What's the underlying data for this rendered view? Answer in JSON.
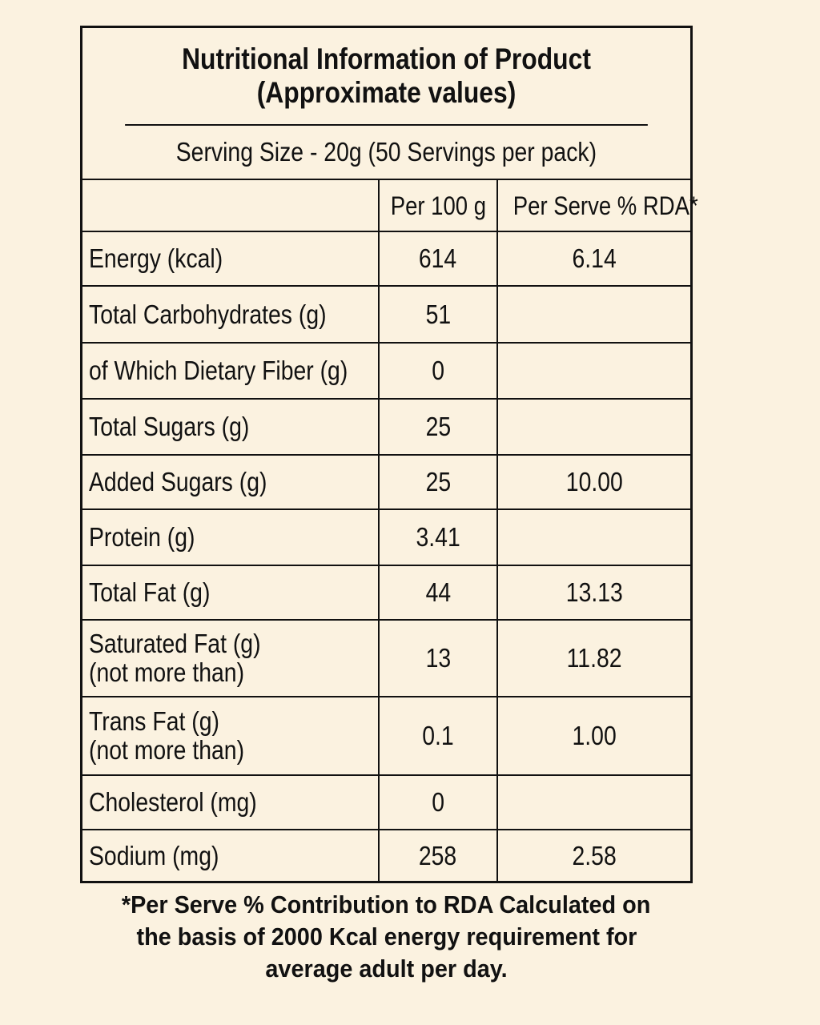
{
  "title": {
    "line1": "Nutritional Information of Product",
    "line2": "(Approximate values)"
  },
  "serving": "Serving Size - 20g (50 Servings per pack)",
  "headers": {
    "per_100g": "Per 100 g",
    "per_serve_rda": "Per Serve % RDA*"
  },
  "rows": [
    {
      "name": "Energy (kcal)",
      "per100": "614",
      "rda": "6.14"
    },
    {
      "name": "Total Carbohydrates (g)",
      "per100": "51",
      "rda": ""
    },
    {
      "name": "of Which Dietary Fiber (g)",
      "per100": "0",
      "rda": ""
    },
    {
      "name": "Total Sugars (g)",
      "per100": "25",
      "rda": ""
    },
    {
      "name": "Added Sugars (g)",
      "per100": "25",
      "rda": "10.00"
    },
    {
      "name": "Protein (g)",
      "per100": "3.41",
      "rda": ""
    },
    {
      "name": "Total Fat (g)",
      "per100": "44",
      "rda": "13.13"
    },
    {
      "name": "Saturated Fat (g)",
      "sub": "(not more than)",
      "per100": "13",
      "rda": "11.82"
    },
    {
      "name": "Trans Fat (g)",
      "sub": "(not more than)",
      "per100": "0.1",
      "rda": "1.00"
    },
    {
      "name": "Cholesterol (mg)",
      "per100": "0",
      "rda": ""
    },
    {
      "name": "Sodium (mg)",
      "per100": "258",
      "rda": "2.58"
    }
  ],
  "footnote": {
    "line1": "*Per Serve % Contribution to RDA Calculated on",
    "line2": "the basis of 2000 Kcal energy requirement for",
    "line3": "average adult per day."
  }
}
